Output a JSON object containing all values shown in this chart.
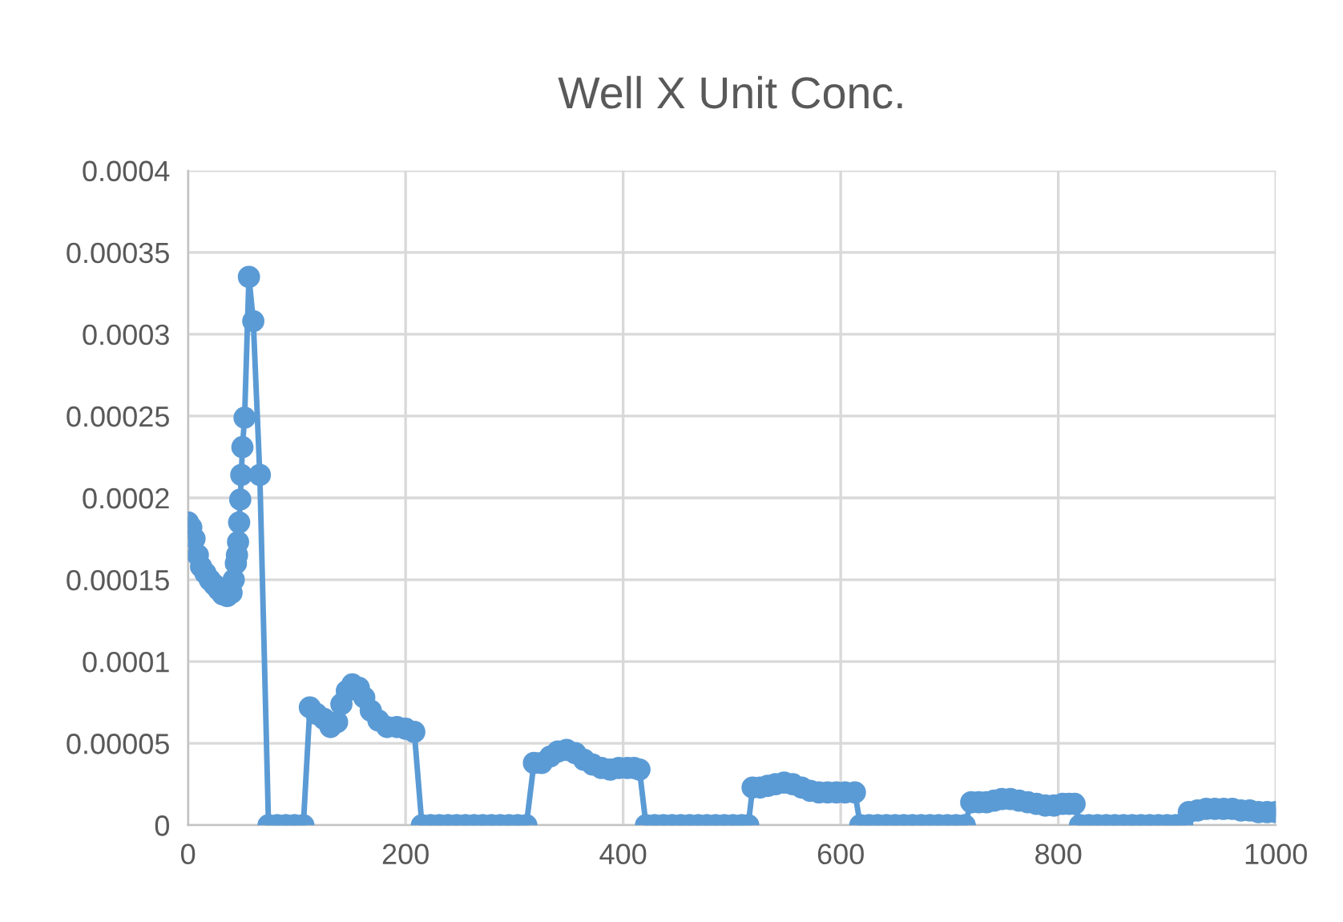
{
  "chart_data": {
    "type": "line",
    "title": "Well X Unit Conc.",
    "series": [
      {
        "color": "#5b9bd5",
        "x": [
          0,
          3,
          6,
          9,
          12,
          16,
          20,
          24,
          28,
          32,
          36,
          40,
          42,
          44,
          45,
          46,
          47,
          48,
          49,
          50,
          52,
          56,
          60,
          66,
          74,
          82,
          90,
          98,
          106,
          112,
          118,
          125,
          131,
          137,
          141,
          146,
          151,
          157,
          162,
          168,
          175,
          183,
          192,
          200,
          208,
          215,
          223,
          231,
          239,
          247,
          255,
          263,
          271,
          279,
          287,
          295,
          303,
          311,
          318,
          325,
          333,
          340,
          348,
          356,
          364,
          372,
          380,
          388,
          396,
          404,
          410,
          415,
          421,
          429,
          437,
          445,
          453,
          461,
          469,
          477,
          485,
          493,
          501,
          509,
          515,
          519,
          526,
          533,
          540,
          548,
          556,
          564,
          572,
          580,
          588,
          596,
          604,
          613,
          618,
          626,
          634,
          642,
          650,
          658,
          666,
          674,
          682,
          690,
          698,
          706,
          714,
          720,
          727,
          734,
          741,
          748,
          756,
          764,
          772,
          780,
          788,
          796,
          804,
          810,
          815,
          820,
          828,
          836,
          844,
          852,
          860,
          868,
          876,
          884,
          892,
          900,
          908,
          914,
          920,
          928,
          936,
          944,
          952,
          960,
          968,
          976,
          984,
          992,
          1000
        ],
        "values": [
          0.000185,
          0.000182,
          0.000175,
          0.000165,
          0.000158,
          0.000154,
          0.00015,
          0.000147,
          0.000144,
          0.000141,
          0.00014,
          0.000142,
          0.00015,
          0.00016,
          0.000165,
          0.000173,
          0.000185,
          0.000199,
          0.000214,
          0.000231,
          0.000249,
          0.000335,
          0.000308,
          0.000214,
          0,
          0,
          0,
          0,
          0,
          7.2e-05,
          6.8e-05,
          6.5e-05,
          6e-05,
          6.3e-05,
          7.4e-05,
          8.2e-05,
          8.6e-05,
          8.4e-05,
          7.8e-05,
          7e-05,
          6.4e-05,
          6e-05,
          6e-05,
          5.9e-05,
          5.7e-05,
          0,
          0,
          0,
          0,
          0,
          0,
          0,
          0,
          0,
          0,
          0,
          0,
          0,
          3.8e-05,
          3.8e-05,
          4.2e-05,
          4.5e-05,
          4.6e-05,
          4.4e-05,
          4e-05,
          3.7e-05,
          3.5e-05,
          3.4e-05,
          3.5e-05,
          3.5e-05,
          3.5e-05,
          3.4e-05,
          0,
          0,
          0,
          0,
          0,
          0,
          0,
          0,
          0,
          0,
          0,
          0,
          0,
          2.3e-05,
          2.3e-05,
          2.4e-05,
          2.5e-05,
          2.6e-05,
          2.5e-05,
          2.3e-05,
          2.1e-05,
          2e-05,
          2e-05,
          2e-05,
          2e-05,
          2e-05,
          0,
          0,
          0,
          0,
          0,
          0,
          0,
          0,
          0,
          0,
          0,
          0,
          0,
          1.4e-05,
          1.4e-05,
          1.4e-05,
          1.5e-05,
          1.6e-05,
          1.6e-05,
          1.5e-05,
          1.4e-05,
          1.3e-05,
          1.2e-05,
          1.2e-05,
          1.3e-05,
          1.3e-05,
          1.3e-05,
          0,
          0,
          0,
          0,
          0,
          0,
          0,
          0,
          0,
          0,
          0,
          0,
          0,
          8e-06,
          9e-06,
          1e-05,
          1e-05,
          1e-05,
          1e-05,
          9e-06,
          9e-06,
          8e-06,
          8e-06,
          8e-06
        ]
      }
    ],
    "xlim": [
      0,
      1000
    ],
    "xticks": [
      0,
      200,
      400,
      600,
      800,
      1000
    ],
    "ylim": [
      0,
      0.0004
    ],
    "yticks": [
      0,
      {
        "value": 5e-05,
        "label": "0.00005"
      },
      {
        "value": 0.0001,
        "label": "0.0001"
      },
      {
        "value": 0.00015,
        "label": "0.00015"
      },
      {
        "value": 0.0002,
        "label": "0.0002"
      },
      {
        "value": 0.00025,
        "label": "0.00025"
      },
      {
        "value": 0.0003,
        "label": "0.0003"
      },
      {
        "value": 0.00035,
        "label": "0.00035"
      },
      {
        "value": 0.0004,
        "label": "0.0004"
      }
    ],
    "grid": true,
    "marker": "circle",
    "line_style": "solid"
  }
}
